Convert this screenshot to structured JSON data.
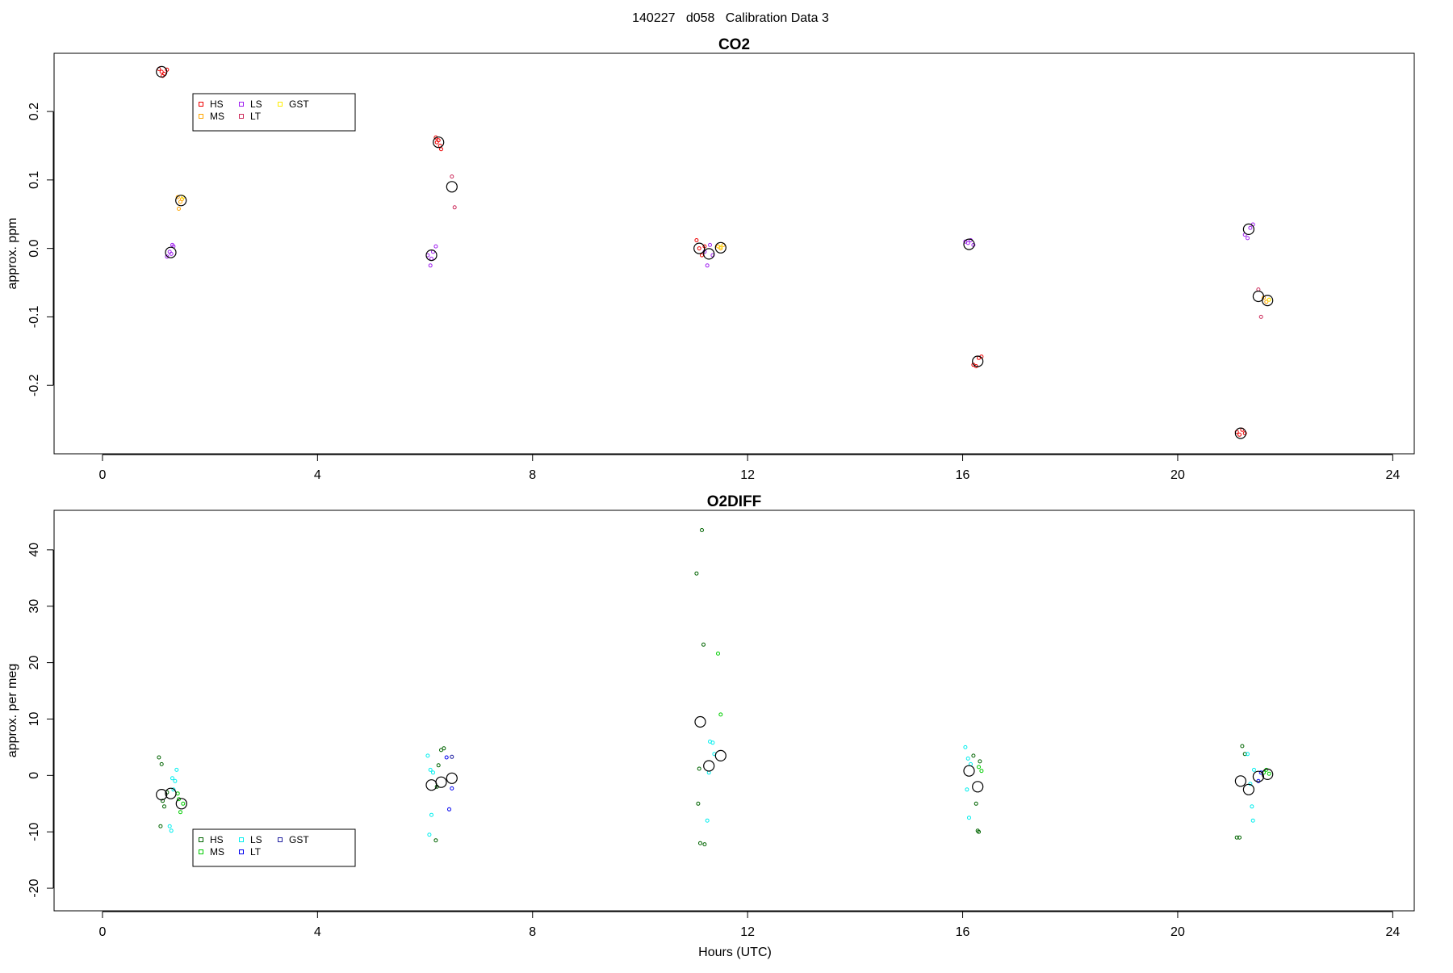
{
  "figure": {
    "title": "140227   d058   Calibration Data 3"
  },
  "colors": {
    "HS": "#ee0000",
    "MS": "#ffa500",
    "LS": "#a020f0",
    "LT": "#cd2c5c",
    "GST": "#ffee00",
    "o2_HS": "#006400",
    "o2_MS": "#00cc00",
    "o2_LS": "#00eeee",
    "o2_LT": "#0000ee",
    "o2_GST": "#2020a0",
    "mean": "#000000"
  },
  "chart_data": [
    {
      "type": "scatter",
      "title": "CO2",
      "xlabel": "",
      "ylabel": "approx. ppm",
      "xlim": [
        -0.9,
        24.4
      ],
      "ylim": [
        -0.3,
        0.285
      ],
      "xticks": [
        0,
        4,
        8,
        12,
        16,
        20,
        24
      ],
      "yticks": [
        0.2,
        0.1,
        0.0,
        -0.1,
        -0.2
      ],
      "ytick_labels": [
        "0.2",
        "0.1",
        "0.0",
        "-0.1",
        "-0.2"
      ],
      "legend": {
        "position": "top-left",
        "entries": [
          "HS",
          "LS",
          "GST",
          "MS",
          "LT"
        ]
      },
      "series": [
        {
          "name": "HS",
          "color_key": "HS",
          "points": [
            [
              1.05,
              0.262
            ],
            [
              1.1,
              0.258
            ],
            [
              1.15,
              0.255
            ],
            [
              1.2,
              0.261
            ],
            [
              1.12,
              0.252
            ],
            [
              6.2,
              0.162
            ],
            [
              6.25,
              0.158
            ],
            [
              6.28,
              0.15
            ],
            [
              6.3,
              0.145
            ],
            [
              6.22,
              0.155
            ],
            [
              11.05,
              0.012
            ],
            [
              11.1,
              0.0
            ],
            [
              11.15,
              -0.01
            ],
            [
              11.2,
              0.003
            ],
            [
              16.2,
              -0.17
            ],
            [
              16.25,
              -0.172
            ],
            [
              16.3,
              -0.16
            ],
            [
              16.35,
              -0.158
            ],
            [
              21.1,
              -0.268
            ],
            [
              21.15,
              -0.272
            ],
            [
              21.2,
              -0.265
            ],
            [
              21.25,
              -0.27
            ]
          ]
        },
        {
          "name": "MS",
          "color_key": "MS",
          "points": [
            [
              1.4,
              0.075
            ],
            [
              1.45,
              0.068
            ],
            [
              1.42,
              0.058
            ],
            [
              1.48,
              0.072
            ],
            [
              11.45,
              0.003
            ],
            [
              11.5,
              0.0
            ],
            [
              11.55,
              0.005
            ],
            [
              21.6,
              -0.072
            ],
            [
              21.65,
              -0.078
            ],
            [
              21.7,
              -0.075
            ]
          ]
        },
        {
          "name": "LS",
          "color_key": "LS",
          "points": [
            [
              1.2,
              -0.012
            ],
            [
              1.25,
              -0.005
            ],
            [
              1.3,
              0.005
            ],
            [
              1.28,
              -0.008
            ],
            [
              1.32,
              0.003
            ],
            [
              6.05,
              -0.01
            ],
            [
              6.1,
              -0.025
            ],
            [
              6.15,
              -0.005
            ],
            [
              6.2,
              0.003
            ],
            [
              6.12,
              -0.015
            ],
            [
              11.2,
              -0.005
            ],
            [
              11.25,
              -0.025
            ],
            [
              11.3,
              0.005
            ],
            [
              11.35,
              -0.01
            ],
            [
              16.05,
              0.01
            ],
            [
              16.1,
              0.008
            ],
            [
              16.15,
              0.012
            ],
            [
              16.2,
              0.005
            ],
            [
              21.25,
              0.02
            ],
            [
              21.3,
              0.015
            ],
            [
              21.35,
              0.03
            ],
            [
              21.4,
              0.035
            ]
          ]
        },
        {
          "name": "LT",
          "color_key": "LT",
          "points": [
            [
              6.5,
              0.105
            ],
            [
              6.55,
              0.06
            ],
            [
              21.5,
              -0.06
            ],
            [
              21.55,
              -0.1
            ]
          ]
        },
        {
          "name": "GST",
          "color_key": "GST",
          "points": [
            [
              1.5,
              0.075
            ],
            [
              11.5,
              0.002
            ],
            [
              21.7,
              -0.075
            ]
          ]
        },
        {
          "name": "mean",
          "color_key": "mean",
          "size": "large",
          "points": [
            [
              1.1,
              0.258
            ],
            [
              1.27,
              -0.006
            ],
            [
              1.46,
              0.07
            ],
            [
              6.25,
              0.155
            ],
            [
              6.12,
              -0.01
            ],
            [
              6.5,
              0.09
            ],
            [
              11.1,
              0.0
            ],
            [
              11.28,
              -0.008
            ],
            [
              11.5,
              0.001
            ],
            [
              16.12,
              0.006
            ],
            [
              16.28,
              -0.165
            ],
            [
              21.17,
              -0.27
            ],
            [
              21.32,
              0.028
            ],
            [
              21.5,
              -0.07
            ],
            [
              21.67,
              -0.076
            ]
          ]
        }
      ]
    },
    {
      "type": "scatter",
      "title": "O2DIFF",
      "xlabel": "Hours (UTC)",
      "ylabel": "approx. per meg",
      "xlim": [
        -0.9,
        24.4
      ],
      "ylim": [
        -24,
        47
      ],
      "xticks": [
        0,
        4,
        8,
        12,
        16,
        20,
        24
      ],
      "yticks": [
        40,
        30,
        20,
        10,
        0,
        -10,
        -20
      ],
      "ytick_labels": [
        "40",
        "30",
        "20",
        "10",
        "0",
        "-10",
        "-20"
      ],
      "legend": {
        "position": "bottom-left",
        "entries": [
          "HS",
          "LS",
          "GST",
          "MS",
          "LT"
        ]
      },
      "series": [
        {
          "name": "HS",
          "color_key": "o2_HS",
          "points": [
            [
              1.05,
              3.2
            ],
            [
              1.1,
              2.0
            ],
            [
              1.12,
              -4.5
            ],
            [
              1.15,
              -5.5
            ],
            [
              1.08,
              -9.0
            ],
            [
              1.2,
              -3.0
            ],
            [
              6.2,
              -11.5
            ],
            [
              6.25,
              1.8
            ],
            [
              6.3,
              4.5
            ],
            [
              6.35,
              4.8
            ],
            [
              6.22,
              -2.0
            ],
            [
              11.05,
              35.8
            ],
            [
              11.1,
              1.2
            ],
            [
              11.15,
              43.5
            ],
            [
              11.18,
              23.2
            ],
            [
              11.08,
              -5.0
            ],
            [
              11.12,
              -12.0
            ],
            [
              11.2,
              -12.2
            ],
            [
              16.2,
              3.5
            ],
            [
              16.25,
              -5.0
            ],
            [
              16.28,
              -9.8
            ],
            [
              16.3,
              -10.0
            ],
            [
              16.32,
              2.5
            ],
            [
              21.1,
              -11.0
            ],
            [
              21.15,
              -11.0
            ],
            [
              21.2,
              5.2
            ],
            [
              21.25,
              3.8
            ]
          ]
        },
        {
          "name": "MS",
          "color_key": "o2_MS",
          "points": [
            [
              1.4,
              -3.2
            ],
            [
              1.45,
              -6.5
            ],
            [
              1.5,
              -5.0
            ],
            [
              1.42,
              -4.2
            ],
            [
              11.45,
              21.6
            ],
            [
              11.5,
              10.8
            ],
            [
              16.3,
              1.5
            ],
            [
              16.35,
              0.8
            ],
            [
              21.6,
              0.5
            ],
            [
              21.65,
              1.0
            ],
            [
              21.7,
              0.3
            ]
          ]
        },
        {
          "name": "LS",
          "color_key": "o2_LS",
          "points": [
            [
              1.3,
              -0.5
            ],
            [
              1.35,
              -1.0
            ],
            [
              1.38,
              1.0
            ],
            [
              1.25,
              -9.0
            ],
            [
              1.28,
              -9.8
            ],
            [
              1.32,
              -2.5
            ],
            [
              6.05,
              3.5
            ],
            [
              6.1,
              1.0
            ],
            [
              6.12,
              -7.0
            ],
            [
              6.08,
              -10.5
            ],
            [
              6.15,
              0.5
            ],
            [
              11.3,
              6.0
            ],
            [
              11.35,
              5.8
            ],
            [
              11.38,
              3.8
            ],
            [
              11.25,
              -8.0
            ],
            [
              11.28,
              0.5
            ],
            [
              16.05,
              5.0
            ],
            [
              16.1,
              3.0
            ],
            [
              16.15,
              2.0
            ],
            [
              16.08,
              -2.5
            ],
            [
              16.12,
              -7.5
            ],
            [
              21.3,
              3.8
            ],
            [
              21.35,
              -1.5
            ],
            [
              21.38,
              -5.5
            ],
            [
              21.4,
              -8.0
            ],
            [
              21.42,
              1.0
            ]
          ]
        },
        {
          "name": "LT",
          "color_key": "o2_LT",
          "points": [
            [
              6.4,
              3.2
            ],
            [
              6.45,
              -6.0
            ],
            [
              6.5,
              -2.3
            ],
            [
              21.5,
              -1.0
            ],
            [
              21.55,
              0.5
            ]
          ]
        },
        {
          "name": "GST",
          "color_key": "o2_GST",
          "points": [
            [
              6.5,
              3.3
            ]
          ]
        },
        {
          "name": "mean",
          "color_key": "mean",
          "size": "large",
          "points": [
            [
              1.1,
              -3.4
            ],
            [
              1.27,
              -3.2
            ],
            [
              1.47,
              -5.0
            ],
            [
              6.12,
              -1.7
            ],
            [
              6.3,
              -1.2
            ],
            [
              6.5,
              -0.5
            ],
            [
              11.12,
              9.5
            ],
            [
              11.28,
              1.7
            ],
            [
              11.5,
              3.5
            ],
            [
              16.12,
              0.8
            ],
            [
              16.28,
              -2.0
            ],
            [
              21.17,
              -1.0
            ],
            [
              21.32,
              -2.5
            ],
            [
              21.5,
              -0.2
            ],
            [
              21.67,
              0.2
            ]
          ]
        }
      ]
    }
  ]
}
